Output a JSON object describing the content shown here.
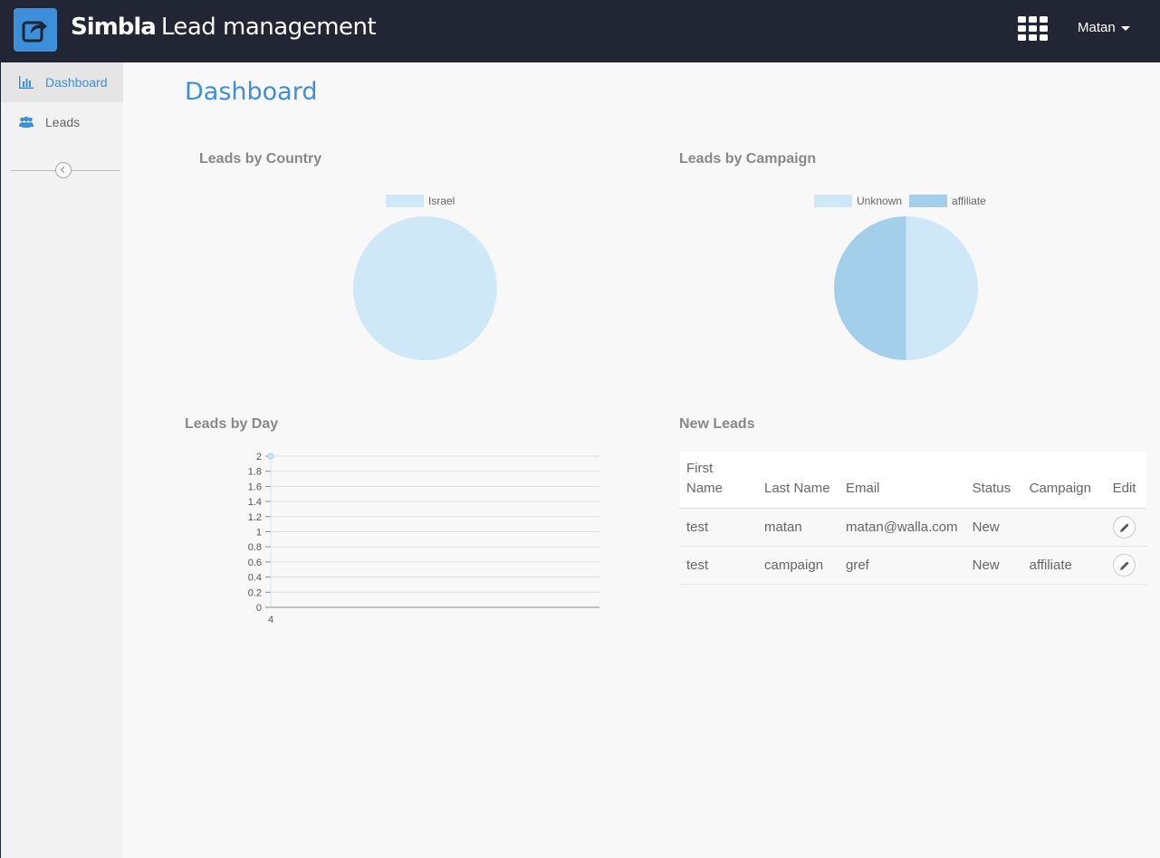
{
  "header": {
    "brand_main": "Simbla",
    "brand_sub": "Lead management",
    "user_name": "Matan",
    "icons": [
      "share-icon",
      "apps-grid-icon",
      "caret-down-icon"
    ]
  },
  "sidebar": {
    "items": [
      {
        "label": "Dashboard",
        "icon": "bar-chart-icon",
        "active": true
      },
      {
        "label": "Leads",
        "icon": "users-icon",
        "active": false
      }
    ]
  },
  "main": {
    "title": "Dashboard",
    "country_section": {
      "title": "Leads by Country"
    },
    "campaign_section": {
      "title": "Leads by Campaign"
    },
    "day_section": {
      "title": "Leads by Day"
    },
    "new_leads": {
      "title": "New Leads",
      "columns": [
        "First Name",
        "Last Name",
        "Email",
        "Status",
        "Campaign",
        "Edit"
      ],
      "rows": [
        {
          "first": "test",
          "last": "matan",
          "email": "matan@walla.com",
          "status": "New",
          "campaign": ""
        },
        {
          "first": "test",
          "last": "campaign",
          "email": "gref",
          "status": "New",
          "campaign": "affiliate"
        }
      ]
    }
  },
  "colors": {
    "accent": "#3d8fd9",
    "topbar": "#222534",
    "pie_light": "#cfe8f8",
    "pie_dark": "#a3cfea"
  },
  "chart_data": [
    {
      "type": "pie",
      "title": "Leads by Country",
      "categories": [
        "Israel"
      ],
      "values": [
        1
      ],
      "colors": [
        "#cfe8f8"
      ],
      "legend": "top"
    },
    {
      "type": "pie",
      "title": "Leads by Campaign",
      "categories": [
        "Unknown",
        "affiliate"
      ],
      "values": [
        1,
        1
      ],
      "colors": [
        "#cfe8f8",
        "#a3cfea"
      ],
      "legend": "top"
    },
    {
      "type": "line",
      "title": "Leads by Day",
      "x": [
        "4"
      ],
      "series": [
        {
          "values": [
            2
          ]
        }
      ],
      "ylim": [
        0,
        2
      ],
      "yticks": [
        "0",
        "0.2",
        "0.4",
        "0.6",
        "0.8",
        "1",
        "1.2",
        "1.4",
        "1.6",
        "1.8",
        "2"
      ],
      "grid": true
    }
  ]
}
